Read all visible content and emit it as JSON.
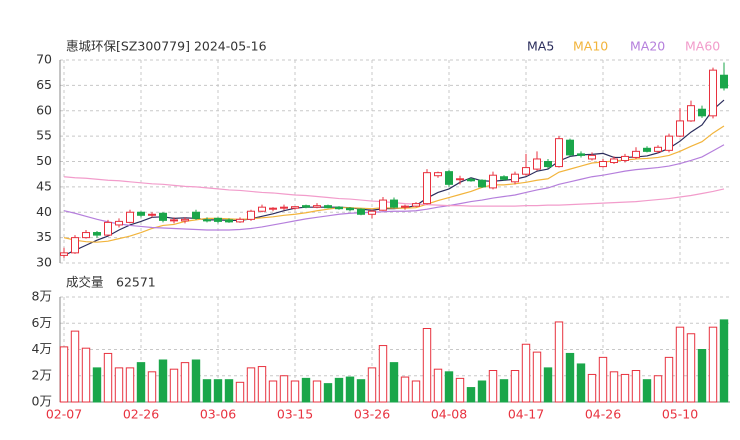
{
  "chart_data": [
    {
      "type": "candlestick",
      "title": "惠城环保[SZ300779] 2024-05-16",
      "up_color": "#e8323f",
      "down_color": "#1aa64a",
      "grid": true,
      "ylim": [
        30,
        70
      ],
      "yticks": [
        30,
        35,
        40,
        45,
        50,
        55,
        60,
        65,
        70
      ],
      "open": [
        31.5,
        32,
        35,
        36,
        35.5,
        37.5,
        38,
        40,
        39.5,
        39.8,
        38.5,
        38.3,
        40,
        38.5,
        38.8,
        38.5,
        38.1,
        38.6,
        40.2,
        40.6,
        40.8,
        40.8,
        41.3,
        41,
        41.3,
        41,
        40.8,
        40.6,
        39.6,
        40.4,
        42.4,
        41,
        41.2,
        41.7,
        47.2,
        48,
        46.5,
        46.5,
        46.3,
        44.8,
        47,
        46,
        47.5,
        48.5,
        50,
        49,
        54.2,
        51.5,
        50.5,
        49,
        49.8,
        50.2,
        50.8,
        52.6,
        52,
        52.2,
        55,
        58,
        60.3,
        59,
        67
      ],
      "high": [
        33,
        35.5,
        36.5,
        36.3,
        38.5,
        38.8,
        40.5,
        40.2,
        40,
        40,
        39,
        39,
        40.5,
        39,
        39,
        38.8,
        39,
        40.5,
        41.5,
        41,
        41.5,
        41.2,
        41.5,
        41.8,
        41.5,
        41.2,
        41,
        40.8,
        40.5,
        43,
        42.9,
        41.5,
        42,
        48.5,
        48,
        48.3,
        47.2,
        46.8,
        46.5,
        48,
        47.3,
        48,
        51.5,
        52,
        50.5,
        55,
        54.5,
        52,
        51.8,
        50.5,
        51,
        51.5,
        52.8,
        53,
        53.2,
        55.5,
        60.5,
        62,
        61,
        68.5,
        69.5
      ],
      "low": [
        31,
        31.8,
        34.8,
        35,
        35.5,
        37,
        37.8,
        39,
        39,
        38,
        37.8,
        37.8,
        38.5,
        38,
        37.8,
        37.9,
        37.9,
        38.3,
        40,
        40.2,
        40.4,
        40.5,
        40.8,
        40.8,
        40.8,
        40.5,
        40.2,
        39.4,
        38.8,
        40.3,
        40.8,
        40.5,
        41,
        41.5,
        46.8,
        45,
        45.5,
        46,
        44.8,
        44.5,
        46.2,
        45.5,
        47.2,
        48.2,
        48.6,
        48.8,
        51,
        50.8,
        50.2,
        48.8,
        49.5,
        49.8,
        50.5,
        51.8,
        51.6,
        51.8,
        54.8,
        57.8,
        58.6,
        58.5,
        64
      ],
      "close": [
        32,
        35,
        36,
        35.5,
        38,
        38.2,
        40,
        39.4,
        39.6,
        38.4,
        38.5,
        38.6,
        38.8,
        38.3,
        38.2,
        38.1,
        38.6,
        40.2,
        41,
        40.8,
        41,
        41.1,
        41,
        41.3,
        40.9,
        40.7,
        40.5,
        39.6,
        40.2,
        42.4,
        41,
        41.2,
        41.7,
        47.8,
        47.8,
        45.5,
        46.6,
        46.2,
        45,
        47.3,
        46.5,
        47.5,
        48.8,
        50.5,
        49,
        54.5,
        51.3,
        51.2,
        51.2,
        50,
        50.5,
        51,
        52,
        52,
        52.8,
        55,
        58,
        61,
        59,
        68,
        64.5
      ],
      "series": [
        {
          "name": "MA5",
          "color": "#2b2d5c",
          "values": [
            31.5,
            32.5,
            33.5,
            34.5,
            35.3,
            36.5,
            37.5,
            38.2,
            39.0,
            39.1,
            38.8,
            38.9,
            38.8,
            38.5,
            38.5,
            38.4,
            38.4,
            38.7,
            39.2,
            39.7,
            40.3,
            40.8,
            41.0,
            41.0,
            41.0,
            41.0,
            40.9,
            40.6,
            40.4,
            40.7,
            40.7,
            40.9,
            41.3,
            42.8,
            43.9,
            44.6,
            45.9,
            46.8,
            46.2,
            46.1,
            46.3,
            46.5,
            47.0,
            48.1,
            48.5,
            50.1,
            51.0,
            51.3,
            51.4,
            51.6,
            50.8,
            50.8,
            50.9,
            51.1,
            51.7,
            52.6,
            54.0,
            55.8,
            57.2,
            60.2,
            62.1
          ]
        },
        {
          "name": "MA10",
          "color": "#f2b43c",
          "values": [
            35,
            34.5,
            34.2,
            34.1,
            34.3,
            34.8,
            35.3,
            36,
            36.8,
            37.4,
            37.6,
            38.2,
            38.5,
            38.8,
            38.8,
            38.7,
            38.6,
            38.7,
            38.9,
            39.1,
            39.4,
            39.6,
            39.9,
            40.3,
            40.6,
            40.9,
            40.9,
            40.8,
            40.7,
            40.9,
            40.8,
            40.8,
            40.9,
            41.6,
            42.3,
            42.9,
            43.5,
            44.1,
            44.9,
            45.4,
            45.4,
            45.6,
            45.9,
            46.3,
            46.6,
            47.9,
            48.5,
            49.1,
            49.7,
            49.9,
            50.1,
            50.3,
            50.5,
            50.6,
            50.8,
            51.2,
            52.0,
            53.0,
            53.9,
            55.6,
            57.0
          ]
        },
        {
          "name": "MA20",
          "color": "#b57fdc",
          "values": [
            40.3,
            39.8,
            39.2,
            38.6,
            38.1,
            37.7,
            37.4,
            37.2,
            37.0,
            36.9,
            36.8,
            36.7,
            36.6,
            36.5,
            36.5,
            36.5,
            36.6,
            36.8,
            37.1,
            37.5,
            37.9,
            38.3,
            38.7,
            39.0,
            39.3,
            39.6,
            39.8,
            39.9,
            40.0,
            40.1,
            40.2,
            40.2,
            40.3,
            40.6,
            41.0,
            41.3,
            41.7,
            42.1,
            42.4,
            42.8,
            43.1,
            43.4,
            43.9,
            44.4,
            44.8,
            45.5,
            46.0,
            46.5,
            47.0,
            47.3,
            47.7,
            48.1,
            48.4,
            48.6,
            48.8,
            49.1,
            49.6,
            50.2,
            50.9,
            52.1,
            53.3
          ]
        },
        {
          "name": "MA60",
          "color": "#f29ccb",
          "values": [
            47.0,
            46.8,
            46.7,
            46.5,
            46.3,
            46.2,
            46.0,
            45.8,
            45.6,
            45.5,
            45.3,
            45.1,
            45.0,
            44.8,
            44.6,
            44.4,
            44.3,
            44.1,
            43.9,
            43.8,
            43.6,
            43.4,
            43.3,
            43.1,
            42.9,
            42.7,
            42.6,
            42.4,
            42.2,
            42.1,
            41.9,
            41.7,
            41.6,
            41.5,
            41.4,
            41.3,
            41.3,
            41.2,
            41.2,
            41.2,
            41.2,
            41.2,
            41.3,
            41.3,
            41.4,
            41.4,
            41.5,
            41.6,
            41.7,
            41.8,
            41.9,
            42.0,
            42.1,
            42.3,
            42.5,
            42.7,
            43.0,
            43.3,
            43.7,
            44.1,
            44.6
          ]
        }
      ]
    },
    {
      "type": "bar",
      "title": "成交量",
      "latest_volume": 62571,
      "grid": true,
      "ylim": [
        0,
        8
      ],
      "yticks": [
        {
          "value": 0,
          "label": "0万"
        },
        {
          "value": 2,
          "label": "2万"
        },
        {
          "value": 4,
          "label": "4万"
        },
        {
          "value": 6,
          "label": "6万"
        },
        {
          "value": 8,
          "label": "8万"
        }
      ],
      "categories": [
        "02-07",
        null,
        null,
        null,
        null,
        null,
        null,
        "02-26",
        null,
        null,
        null,
        null,
        null,
        null,
        "03-06",
        null,
        null,
        null,
        null,
        null,
        null,
        "03-15",
        null,
        null,
        null,
        null,
        null,
        null,
        "03-26",
        null,
        null,
        null,
        null,
        null,
        null,
        "04-08",
        null,
        null,
        null,
        null,
        null,
        null,
        "04-17",
        null,
        null,
        null,
        null,
        null,
        null,
        "04-26",
        null,
        null,
        null,
        null,
        null,
        null,
        "05-10",
        null,
        null,
        null,
        null
      ],
      "values": [
        4.2,
        5.4,
        4.1,
        2.6,
        3.7,
        2.6,
        2.6,
        3.0,
        2.3,
        3.2,
        2.5,
        3.0,
        3.2,
        1.7,
        1.7,
        1.7,
        1.5,
        2.6,
        2.7,
        1.6,
        2.0,
        1.6,
        1.8,
        1.6,
        1.4,
        1.8,
        1.9,
        1.7,
        2.6,
        4.3,
        3.0,
        1.9,
        1.6,
        5.6,
        2.5,
        2.3,
        1.8,
        1.1,
        1.6,
        2.4,
        1.7,
        2.4,
        4.4,
        3.8,
        2.6,
        6.1,
        3.7,
        2.9,
        2.1,
        3.4,
        2.3,
        2.1,
        2.4,
        1.7,
        2.0,
        3.4,
        5.7,
        5.2,
        4.0,
        5.7,
        6.2571
      ]
    }
  ]
}
